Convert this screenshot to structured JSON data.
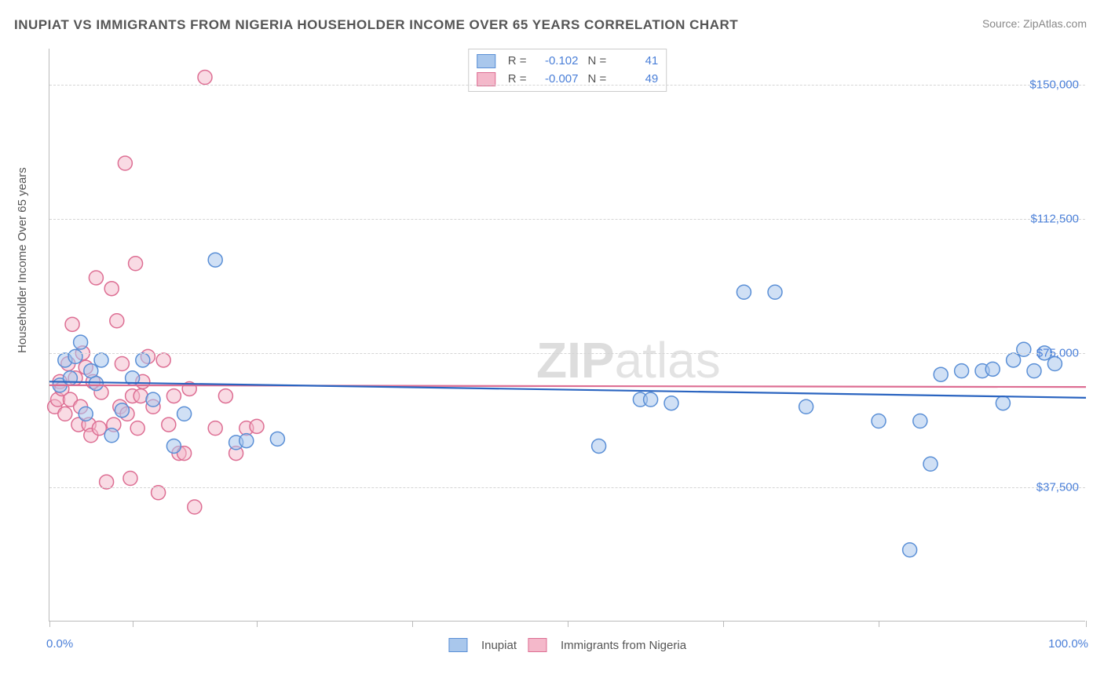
{
  "title": "INUPIAT VS IMMIGRANTS FROM NIGERIA HOUSEHOLDER INCOME OVER 65 YEARS CORRELATION CHART",
  "source": "Source: ZipAtlas.com",
  "watermark_zip": "ZIP",
  "watermark_atlas": "atlas",
  "chart": {
    "type": "scatter",
    "y_label": "Householder Income Over 65 years",
    "background_color": "#ffffff",
    "grid_color": "#d5d5d5",
    "x_min": 0,
    "x_max": 100,
    "y_min": 0,
    "y_max": 160000,
    "x_ticks": [
      0,
      8,
      20,
      35,
      50,
      65,
      80,
      100
    ],
    "x_axis_labels": [
      {
        "pos": 0,
        "text": "0.0%"
      },
      {
        "pos": 100,
        "text": "100.0%"
      }
    ],
    "y_gridlines": [
      {
        "value": 37500,
        "label": "$37,500"
      },
      {
        "value": 75000,
        "label": "$75,000"
      },
      {
        "value": 112500,
        "label": "$112,500"
      },
      {
        "value": 150000,
        "label": "$150,000"
      }
    ],
    "series": [
      {
        "name": "Inupiat",
        "fill": "#a9c7ec",
        "stroke": "#5a8fd6",
        "fill_opacity": 0.55,
        "r_value": "-0.102",
        "n_value": "41",
        "marker_radius": 9,
        "regression": {
          "x1": 0,
          "y1": 67000,
          "x2": 100,
          "y2": 62500,
          "color": "#2a64c0",
          "width": 2.2
        },
        "points": [
          [
            1.0,
            66000
          ],
          [
            1.5,
            73000
          ],
          [
            2.0,
            68000
          ],
          [
            2.5,
            74000
          ],
          [
            3.0,
            78000
          ],
          [
            3.5,
            58000
          ],
          [
            4.0,
            70000
          ],
          [
            4.5,
            66500
          ],
          [
            5.0,
            73000
          ],
          [
            6.0,
            52000
          ],
          [
            7.0,
            59000
          ],
          [
            8.0,
            68000
          ],
          [
            9.0,
            73000
          ],
          [
            10.0,
            62000
          ],
          [
            12.0,
            49000
          ],
          [
            13.0,
            58000
          ],
          [
            16.0,
            101000
          ],
          [
            18.0,
            50000
          ],
          [
            19.0,
            50500
          ],
          [
            22.0,
            51000
          ],
          [
            53.0,
            49000
          ],
          [
            57.0,
            62000
          ],
          [
            58.0,
            62000
          ],
          [
            60.0,
            61000
          ],
          [
            67.0,
            92000
          ],
          [
            70.0,
            92000
          ],
          [
            73.0,
            60000
          ],
          [
            80.0,
            56000
          ],
          [
            83.0,
            20000
          ],
          [
            84.0,
            56000
          ],
          [
            85.0,
            44000
          ],
          [
            86.0,
            69000
          ],
          [
            88.0,
            70000
          ],
          [
            90.0,
            70000
          ],
          [
            91.0,
            70500
          ],
          [
            92.0,
            61000
          ],
          [
            93.0,
            73000
          ],
          [
            94.0,
            76000
          ],
          [
            95.0,
            70000
          ],
          [
            96.0,
            75000
          ],
          [
            97.0,
            72000
          ]
        ]
      },
      {
        "name": "Immigrants from Nigeria",
        "fill": "#f4b8ca",
        "stroke": "#dd6e93",
        "fill_opacity": 0.5,
        "r_value": "-0.007",
        "n_value": "49",
        "marker_radius": 9,
        "regression": {
          "x1": 0,
          "y1": 66000,
          "x2": 100,
          "y2": 65500,
          "color": "#dd6e93",
          "width": 2.2
        },
        "points": [
          [
            0.5,
            60000
          ],
          [
            0.8,
            62000
          ],
          [
            1.0,
            67000
          ],
          [
            1.2,
            65000
          ],
          [
            1.5,
            58000
          ],
          [
            1.8,
            72000
          ],
          [
            2.0,
            62000
          ],
          [
            2.2,
            83000
          ],
          [
            2.5,
            68000
          ],
          [
            2.8,
            55000
          ],
          [
            3.0,
            60000
          ],
          [
            3.2,
            75000
          ],
          [
            3.5,
            71000
          ],
          [
            3.8,
            55000
          ],
          [
            4.0,
            52000
          ],
          [
            4.2,
            67000
          ],
          [
            4.5,
            96000
          ],
          [
            4.8,
            54000
          ],
          [
            5.0,
            64000
          ],
          [
            5.5,
            39000
          ],
          [
            6.0,
            93000
          ],
          [
            6.2,
            55000
          ],
          [
            6.5,
            84000
          ],
          [
            6.8,
            60000
          ],
          [
            7.0,
            72000
          ],
          [
            7.3,
            128000
          ],
          [
            7.5,
            58000
          ],
          [
            7.8,
            40000
          ],
          [
            8.0,
            63000
          ],
          [
            8.3,
            100000
          ],
          [
            8.5,
            54000
          ],
          [
            8.8,
            63000
          ],
          [
            9.0,
            67000
          ],
          [
            9.5,
            74000
          ],
          [
            10.0,
            60000
          ],
          [
            10.5,
            36000
          ],
          [
            11.0,
            73000
          ],
          [
            11.5,
            55000
          ],
          [
            12.0,
            63000
          ],
          [
            12.5,
            47000
          ],
          [
            13.0,
            47000
          ],
          [
            13.5,
            65000
          ],
          [
            14.0,
            32000
          ],
          [
            15.0,
            152000
          ],
          [
            16.0,
            54000
          ],
          [
            17.0,
            63000
          ],
          [
            18.0,
            47000
          ],
          [
            19.0,
            54000
          ],
          [
            20.0,
            54500
          ]
        ]
      }
    ]
  },
  "legend_bottom": {
    "series1_label": "Inupiat",
    "series2_label": "Immigrants from Nigeria"
  },
  "legend_top_labels": {
    "r": "R =",
    "n": "N ="
  }
}
